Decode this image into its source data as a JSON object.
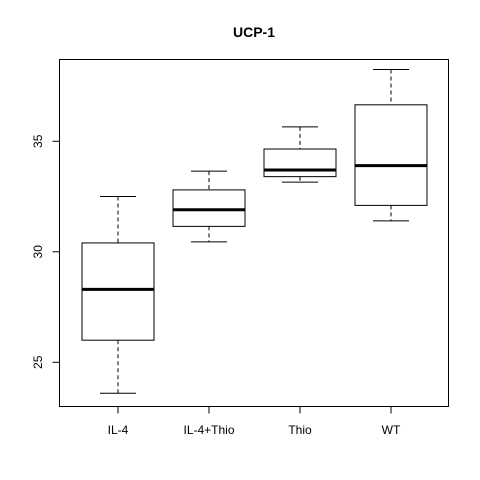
{
  "chart_data": {
    "type": "box",
    "title": "UCP-1",
    "xlabel": "",
    "ylabel": "",
    "categories": [
      "IL-4",
      "IL-4+Thio",
      "Thio",
      "WT"
    ],
    "boxes": [
      {
        "whisker_low": 23.6,
        "q1": 26.0,
        "median": 28.3,
        "q3": 30.4,
        "whisker_high": 32.5
      },
      {
        "whisker_low": 30.45,
        "q1": 31.15,
        "median": 31.9,
        "q3": 32.8,
        "whisker_high": 33.65
      },
      {
        "whisker_low": 33.15,
        "q1": 33.4,
        "median": 33.7,
        "q3": 34.65,
        "whisker_high": 35.65
      },
      {
        "whisker_low": 31.4,
        "q1": 32.1,
        "median": 33.9,
        "q3": 36.65,
        "whisker_high": 38.25
      }
    ],
    "ylim": [
      23.0,
      38.7
    ],
    "yticks": [
      25,
      30,
      35
    ],
    "grid": false,
    "legend": "none"
  }
}
